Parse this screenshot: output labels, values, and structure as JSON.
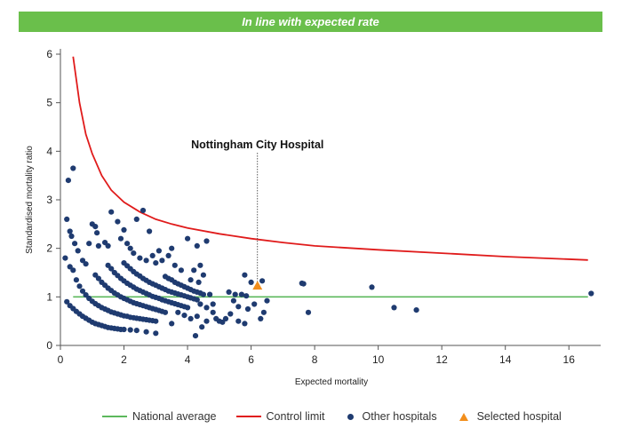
{
  "banner": {
    "text": "In line with expected rate",
    "color": "#6abf4b"
  },
  "chart_data": {
    "type": "scatter",
    "xlabel": "Expected mortality",
    "ylabel": "Standardised mortality ratio",
    "xlim": [
      0,
      17
    ],
    "ylim": [
      0,
      6
    ],
    "xticks": [
      0,
      2,
      4,
      6,
      8,
      10,
      12,
      14,
      16
    ],
    "yticks": [
      0,
      1,
      2,
      3,
      4,
      5,
      6
    ],
    "grid": false,
    "legend_position": "bottom",
    "national_average": {
      "name": "National average",
      "value": 1,
      "x_range": [
        0.4,
        16.6
      ],
      "color": "#5cb85c"
    },
    "control_limit": {
      "name": "Control limit",
      "color": "#e01b1b",
      "points": [
        [
          0.4,
          5.95
        ],
        [
          0.6,
          5.0
        ],
        [
          0.8,
          4.35
        ],
        [
          1.0,
          3.95
        ],
        [
          1.3,
          3.5
        ],
        [
          1.6,
          3.2
        ],
        [
          2.0,
          2.95
        ],
        [
          2.5,
          2.75
        ],
        [
          3.0,
          2.6
        ],
        [
          3.5,
          2.5
        ],
        [
          4.0,
          2.42
        ],
        [
          5.0,
          2.3
        ],
        [
          6.0,
          2.2
        ],
        [
          7.0,
          2.12
        ],
        [
          8.0,
          2.05
        ],
        [
          10.0,
          1.97
        ],
        [
          12.0,
          1.9
        ],
        [
          14.0,
          1.83
        ],
        [
          16.6,
          1.76
        ]
      ]
    },
    "selected": {
      "name": "Selected hospital",
      "label": "Nottingham City Hospital",
      "x": 6.2,
      "y": 1.23,
      "color": "#f28e1c"
    },
    "other_name": "Other hospitals",
    "other_color": "#1f3b70",
    "other_points": [
      [
        0.15,
        1.8
      ],
      [
        0.2,
        2.6
      ],
      [
        0.25,
        3.4
      ],
      [
        0.4,
        3.65
      ],
      [
        0.3,
        2.35
      ],
      [
        0.35,
        2.25
      ],
      [
        0.45,
        2.1
      ],
      [
        0.55,
        1.95
      ],
      [
        0.4,
        1.55
      ],
      [
        0.3,
        1.62
      ],
      [
        0.8,
        1.68
      ],
      [
        0.7,
        1.75
      ],
      [
        1.0,
        2.5
      ],
      [
        1.1,
        2.45
      ],
      [
        1.15,
        2.32
      ],
      [
        0.9,
        2.1
      ],
      [
        1.2,
        2.05
      ],
      [
        1.4,
        2.12
      ],
      [
        1.5,
        2.05
      ],
      [
        1.6,
        2.75
      ],
      [
        1.8,
        2.55
      ],
      [
        2.0,
        2.38
      ],
      [
        1.9,
        2.2
      ],
      [
        2.1,
        2.1
      ],
      [
        2.2,
        2.0
      ],
      [
        2.4,
        2.6
      ],
      [
        2.6,
        2.78
      ],
      [
        2.8,
        2.35
      ],
      [
        3.1,
        1.95
      ],
      [
        3.5,
        2.0
      ],
      [
        4.0,
        2.2
      ],
      [
        4.3,
        2.05
      ],
      [
        4.6,
        2.15
      ],
      [
        2.3,
        1.9
      ],
      [
        2.5,
        1.8
      ],
      [
        2.7,
        1.75
      ],
      [
        2.9,
        1.85
      ],
      [
        3.0,
        1.7
      ],
      [
        3.2,
        1.75
      ],
      [
        3.4,
        1.85
      ],
      [
        3.6,
        1.65
      ],
      [
        3.8,
        1.55
      ],
      [
        4.2,
        1.55
      ],
      [
        4.4,
        1.65
      ],
      [
        4.5,
        1.45
      ],
      [
        4.7,
        1.05
      ],
      [
        4.8,
        0.85
      ],
      [
        4.1,
        1.35
      ],
      [
        4.35,
        1.3
      ],
      [
        5.3,
        1.1
      ],
      [
        5.5,
        1.05
      ],
      [
        5.7,
        1.05
      ],
      [
        5.85,
        1.02
      ],
      [
        5.8,
        1.45
      ],
      [
        6.0,
        1.3
      ],
      [
        6.35,
        1.33
      ],
      [
        5.45,
        0.92
      ],
      [
        6.1,
        0.85
      ],
      [
        6.5,
        0.92
      ],
      [
        6.4,
        0.68
      ],
      [
        6.3,
        0.55
      ],
      [
        5.35,
        0.65
      ],
      [
        5.2,
        0.55
      ],
      [
        5.1,
        0.48
      ],
      [
        5.0,
        0.5
      ],
      [
        4.9,
        0.55
      ],
      [
        4.6,
        0.5
      ],
      [
        4.45,
        0.38
      ],
      [
        4.3,
        0.6
      ],
      [
        4.1,
        0.55
      ],
      [
        3.9,
        0.62
      ],
      [
        3.7,
        0.68
      ],
      [
        3.5,
        0.45
      ],
      [
        4.25,
        0.2
      ],
      [
        3.0,
        0.25
      ],
      [
        2.7,
        0.28
      ],
      [
        4.4,
        0.85
      ],
      [
        4.6,
        0.78
      ],
      [
        4.8,
        0.68
      ],
      [
        5.6,
        0.5
      ],
      [
        5.8,
        0.45
      ],
      [
        5.6,
        0.8
      ],
      [
        5.9,
        0.75
      ],
      [
        0.2,
        0.9
      ],
      [
        0.3,
        0.82
      ],
      [
        0.4,
        0.76
      ],
      [
        0.5,
        0.7
      ],
      [
        0.6,
        0.65
      ],
      [
        0.7,
        0.6
      ],
      [
        0.8,
        0.56
      ],
      [
        0.9,
        0.52
      ],
      [
        1.0,
        0.48
      ],
      [
        1.1,
        0.45
      ],
      [
        1.2,
        0.43
      ],
      [
        1.3,
        0.41
      ],
      [
        1.4,
        0.39
      ],
      [
        1.5,
        0.37
      ],
      [
        1.6,
        0.36
      ],
      [
        1.7,
        0.35
      ],
      [
        1.8,
        0.34
      ],
      [
        1.9,
        0.33
      ],
      [
        2.0,
        0.33
      ],
      [
        2.2,
        0.32
      ],
      [
        2.4,
        0.31
      ],
      [
        0.5,
        1.35
      ],
      [
        0.6,
        1.22
      ],
      [
        0.7,
        1.12
      ],
      [
        0.8,
        1.04
      ],
      [
        0.9,
        0.97
      ],
      [
        1.0,
        0.91
      ],
      [
        1.1,
        0.86
      ],
      [
        1.2,
        0.82
      ],
      [
        1.3,
        0.78
      ],
      [
        1.4,
        0.75
      ],
      [
        1.5,
        0.72
      ],
      [
        1.6,
        0.69
      ],
      [
        1.7,
        0.67
      ],
      [
        1.8,
        0.65
      ],
      [
        1.9,
        0.63
      ],
      [
        2.0,
        0.61
      ],
      [
        2.1,
        0.6
      ],
      [
        2.2,
        0.58
      ],
      [
        2.3,
        0.57
      ],
      [
        2.4,
        0.56
      ],
      [
        2.5,
        0.55
      ],
      [
        2.6,
        0.54
      ],
      [
        2.7,
        0.53
      ],
      [
        2.8,
        0.52
      ],
      [
        2.9,
        0.51
      ],
      [
        3.0,
        0.5
      ],
      [
        1.1,
        1.45
      ],
      [
        1.2,
        1.38
      ],
      [
        1.3,
        1.3
      ],
      [
        1.4,
        1.24
      ],
      [
        1.5,
        1.18
      ],
      [
        1.6,
        1.13
      ],
      [
        1.7,
        1.08
      ],
      [
        1.8,
        1.04
      ],
      [
        1.9,
        1.0
      ],
      [
        2.0,
        0.97
      ],
      [
        2.1,
        0.94
      ],
      [
        2.2,
        0.91
      ],
      [
        2.3,
        0.88
      ],
      [
        2.4,
        0.86
      ],
      [
        2.5,
        0.84
      ],
      [
        2.6,
        0.82
      ],
      [
        2.7,
        0.8
      ],
      [
        2.8,
        0.78
      ],
      [
        2.9,
        0.76
      ],
      [
        3.0,
        0.74
      ],
      [
        3.1,
        0.72
      ],
      [
        3.2,
        0.7
      ],
      [
        3.3,
        0.68
      ],
      [
        1.5,
        1.65
      ],
      [
        1.6,
        1.58
      ],
      [
        1.7,
        1.5
      ],
      [
        1.8,
        1.44
      ],
      [
        1.9,
        1.38
      ],
      [
        2.0,
        1.33
      ],
      [
        2.1,
        1.28
      ],
      [
        2.2,
        1.24
      ],
      [
        2.3,
        1.2
      ],
      [
        2.4,
        1.16
      ],
      [
        2.5,
        1.13
      ],
      [
        2.6,
        1.1
      ],
      [
        2.7,
        1.07
      ],
      [
        2.8,
        1.04
      ],
      [
        2.9,
        1.01
      ],
      [
        3.0,
        0.99
      ],
      [
        3.1,
        0.97
      ],
      [
        3.2,
        0.94
      ],
      [
        3.3,
        0.92
      ],
      [
        3.4,
        0.9
      ],
      [
        3.5,
        0.88
      ],
      [
        3.6,
        0.86
      ],
      [
        3.7,
        0.84
      ],
      [
        3.8,
        0.82
      ],
      [
        3.9,
        0.8
      ],
      [
        4.0,
        0.78
      ],
      [
        2.0,
        1.7
      ],
      [
        2.1,
        1.64
      ],
      [
        2.2,
        1.58
      ],
      [
        2.3,
        1.52
      ],
      [
        2.4,
        1.47
      ],
      [
        2.5,
        1.43
      ],
      [
        2.6,
        1.38
      ],
      [
        2.7,
        1.34
      ],
      [
        2.8,
        1.3
      ],
      [
        2.9,
        1.27
      ],
      [
        3.0,
        1.24
      ],
      [
        3.1,
        1.21
      ],
      [
        3.2,
        1.18
      ],
      [
        3.3,
        1.15
      ],
      [
        3.4,
        1.12
      ],
      [
        3.5,
        1.1
      ],
      [
        3.6,
        1.08
      ],
      [
        3.7,
        1.06
      ],
      [
        3.8,
        1.04
      ],
      [
        3.9,
        1.02
      ],
      [
        4.0,
        1.0
      ],
      [
        4.1,
        0.98
      ],
      [
        4.2,
        0.96
      ],
      [
        4.3,
        0.94
      ],
      [
        3.3,
        1.42
      ],
      [
        3.4,
        1.38
      ],
      [
        3.5,
        1.35
      ],
      [
        3.6,
        1.3
      ],
      [
        3.7,
        1.27
      ],
      [
        3.8,
        1.24
      ],
      [
        3.9,
        1.21
      ],
      [
        4.0,
        1.18
      ],
      [
        4.1,
        1.15
      ],
      [
        4.2,
        1.12
      ],
      [
        4.3,
        1.1
      ],
      [
        4.4,
        1.08
      ],
      [
        4.5,
        1.05
      ],
      [
        7.6,
        1.28
      ],
      [
        7.65,
        1.27
      ],
      [
        7.8,
        0.68
      ],
      [
        9.8,
        1.2
      ],
      [
        10.5,
        0.78
      ],
      [
        11.2,
        0.73
      ],
      [
        16.7,
        1.07
      ]
    ]
  }
}
